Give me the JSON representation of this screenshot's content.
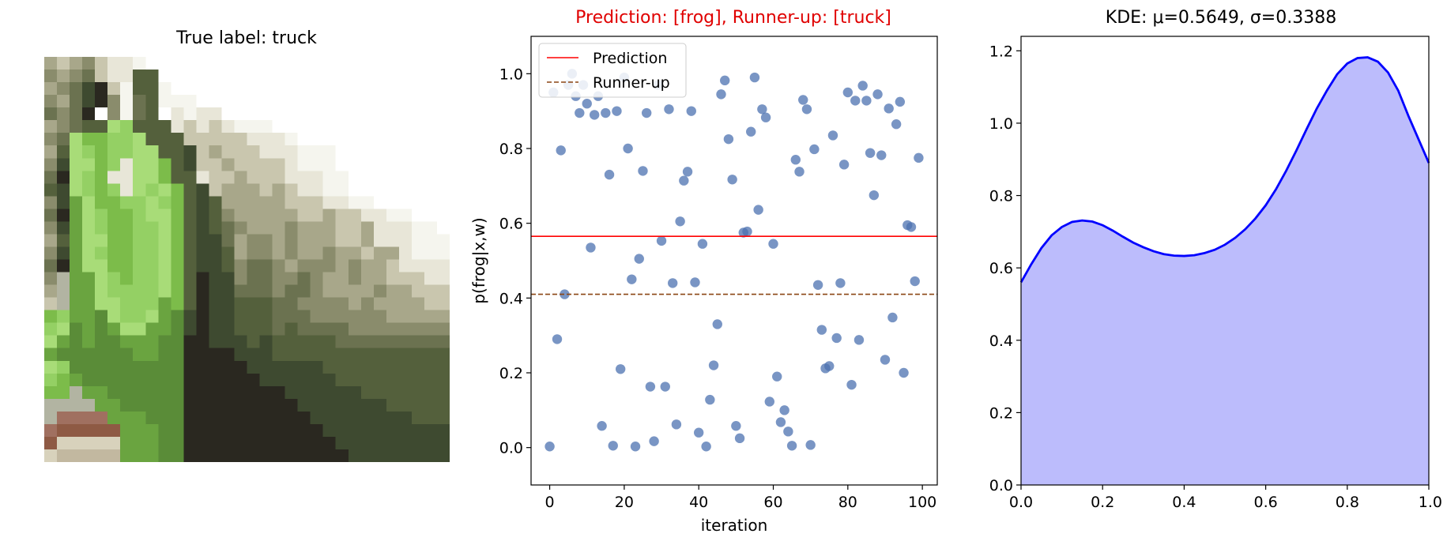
{
  "image_panel": {
    "title": "True label: truck",
    "palette": [
      "#ffffff",
      "#f5f5ee",
      "#e8e6d8",
      "#c9c6ae",
      "#a8a78a",
      "#8a8c6c",
      "#6b7250",
      "#54603c",
      "#3e4a30",
      "#2a2820",
      "#7cbc4a",
      "#94d064",
      "#a8dc78",
      "#6aa440",
      "#5a8c38",
      "#b4a888",
      "#9c8c70",
      "#7a6a5a",
      "#5a4a44",
      "#3c2c2c",
      "#c2b8a0",
      "#d8d2bc",
      "#8e5a44",
      "#a07060",
      "#b2b4a2"
    ],
    "pixels": [
      "43453221000000000000000000000000",
      "54563227700000000000000000000000",
      "45689317710000000000000000000000",
      "54689516711100000000000000000000",
      "65690516702122000000000000000000",
      "45677CB7772323211100000000000000",
      "56CAABBC7773333322210000000000000",
      "47CBABBCC778343332221110000000000",
      "58CCAB2CCA78334333321110000000000",
      "69CBA22CCA772334333222110000000000",
      "78CBAB2CBCA7834443432211000000000",
      "58DCAABBCBA78744444333221100000000",
      "69DCBAABCCA7875444443343322110000",
      "58DCBAABBCA7876544454443342221100",
      "47DCCAABBCA7886455454443342221110",
      "58DCBAABBCA7887455454454434421111",
      "69DCCAABBCA7887566545554544322222",
      "5ODDCBABBCA7988566556544544333222",
      "4ODDCBBBBCA79886665665444454433322",
      "3ODDCCBBBDA7988777665555454444333",
      "PQDDECBBCDE8988777666555555444444",
      "QREDEDCCDDE8988777676666555555555",
      "RSEDEEDDDEE9988878777776666666666",
      "STEEEEEDDEE9999888777777777777777",
      "RQEEEEEEEEE9999988888877777777777",
      "QPDEEEEEEEE9999998888887777777777",
      "PPODDEEEEEE99999999888888777777777",
      "OOOODDEEEEE99999999988888887777777",
      "ONNNNDDDEEE99999999998888888877777",
      "NMMMMMDDDEE99999999999888888888877",
      "MLLLLLDDDEE99999999999988888888888",
      "LKKKKKDDDEE99999999999998888888888"
    ]
  },
  "scatter_panel": {
    "title": "Prediction: [frog], Runner-up: [truck]",
    "xlabel": "iteration",
    "ylabel": "p(frog|x,w)",
    "legend": {
      "placement": "upper-left",
      "prediction_label": "Prediction",
      "runnerup_label": "Runner-up"
    },
    "colors": {
      "points": "#4c72b0",
      "prediction": "#ff0000",
      "runnerup": "#8b4513",
      "title": "#e00000"
    }
  },
  "kde_panel": {
    "title": "KDE: μ=0.5649, σ=0.3388",
    "colors": {
      "line": "#0000ff",
      "fill": "#bcbcfc"
    }
  },
  "chart_data": [
    {
      "type": "scatter",
      "xlim": [
        -5,
        104
      ],
      "ylim": [
        -0.1,
        1.1
      ],
      "xticks": [
        0,
        20,
        40,
        60,
        80,
        100
      ],
      "yticks": [
        0.0,
        0.2,
        0.4,
        0.6,
        0.8,
        1.0
      ],
      "grid": false,
      "prediction_level": 0.565,
      "runnerup_level": 0.41,
      "x": [
        0,
        1,
        2,
        3,
        4,
        5,
        6,
        7,
        8,
        9,
        10,
        11,
        12,
        13,
        14,
        15,
        16,
        17,
        18,
        19,
        20,
        21,
        22,
        23,
        24,
        25,
        26,
        27,
        28,
        29,
        30,
        31,
        32,
        33,
        34,
        35,
        36,
        37,
        38,
        39,
        40,
        41,
        42,
        43,
        44,
        45,
        46,
        47,
        48,
        49,
        50,
        51,
        52,
        53,
        54,
        55,
        56,
        57,
        58,
        59,
        60,
        61,
        62,
        63,
        64,
        65,
        66,
        67,
        68,
        69,
        70,
        71,
        72,
        73,
        74,
        75,
        76,
        77,
        78,
        79,
        80,
        81,
        82,
        83,
        84,
        85,
        86,
        87,
        88,
        89,
        90,
        91,
        92,
        93,
        94,
        95,
        96,
        97,
        98,
        99
      ],
      "y": [
        0.003,
        0.95,
        0.29,
        0.795,
        0.41,
        0.97,
        1.0,
        0.94,
        0.895,
        0.97,
        0.92,
        0.535,
        0.89,
        0.94,
        0.058,
        0.895,
        0.73,
        0.005,
        0.9,
        0.21,
        0.99,
        0.8,
        0.45,
        0.003,
        0.505,
        0.74,
        0.895,
        0.163,
        0.017,
        0.97,
        0.553,
        0.163,
        0.905,
        0.44,
        0.062,
        0.605,
        0.714,
        0.738,
        0.9,
        0.442,
        0.04,
        0.545,
        0.003,
        0.128,
        0.22,
        0.33,
        0.945,
        0.982,
        0.825,
        0.717,
        0.058,
        0.025,
        0.575,
        0.578,
        0.845,
        0.99,
        0.636,
        0.905,
        0.883,
        0.123,
        0.545,
        0.19,
        0.068,
        0.1,
        0.043,
        0.005,
        0.77,
        0.738,
        0.93,
        0.905,
        0.007,
        0.798,
        0.435,
        0.315,
        0.212,
        0.218,
        0.835,
        0.293,
        0.44,
        0.757,
        0.95,
        0.168,
        0.928,
        0.288,
        0.968,
        0.928,
        0.788,
        0.675,
        0.945,
        0.782,
        0.235,
        0.907,
        0.348,
        0.865,
        0.925,
        0.2,
        0.595,
        0.59,
        0.445,
        0.775
      ]
    },
    {
      "type": "area",
      "xlim": [
        0,
        1
      ],
      "ylim": [
        0,
        1.24
      ],
      "xticks": [
        0.0,
        0.2,
        0.4,
        0.6,
        0.8,
        1.0
      ],
      "yticks": [
        0.0,
        0.2,
        0.4,
        0.6,
        0.8,
        1.0,
        1.2
      ],
      "grid": false,
      "x": [
        0.0,
        0.025,
        0.05,
        0.075,
        0.1,
        0.125,
        0.15,
        0.175,
        0.2,
        0.225,
        0.25,
        0.275,
        0.3,
        0.325,
        0.35,
        0.375,
        0.4,
        0.425,
        0.45,
        0.475,
        0.5,
        0.525,
        0.55,
        0.575,
        0.6,
        0.625,
        0.65,
        0.675,
        0.7,
        0.725,
        0.75,
        0.775,
        0.8,
        0.825,
        0.85,
        0.875,
        0.9,
        0.925,
        0.95,
        0.975,
        1.0
      ],
      "y": [
        0.56,
        0.61,
        0.655,
        0.69,
        0.713,
        0.727,
        0.731,
        0.728,
        0.718,
        0.703,
        0.686,
        0.67,
        0.657,
        0.646,
        0.638,
        0.634,
        0.633,
        0.635,
        0.641,
        0.65,
        0.664,
        0.683,
        0.707,
        0.737,
        0.773,
        0.817,
        0.868,
        0.924,
        0.983,
        1.04,
        1.09,
        1.135,
        1.165,
        1.18,
        1.182,
        1.17,
        1.14,
        1.09,
        1.02,
        0.955,
        0.89
      ]
    }
  ]
}
